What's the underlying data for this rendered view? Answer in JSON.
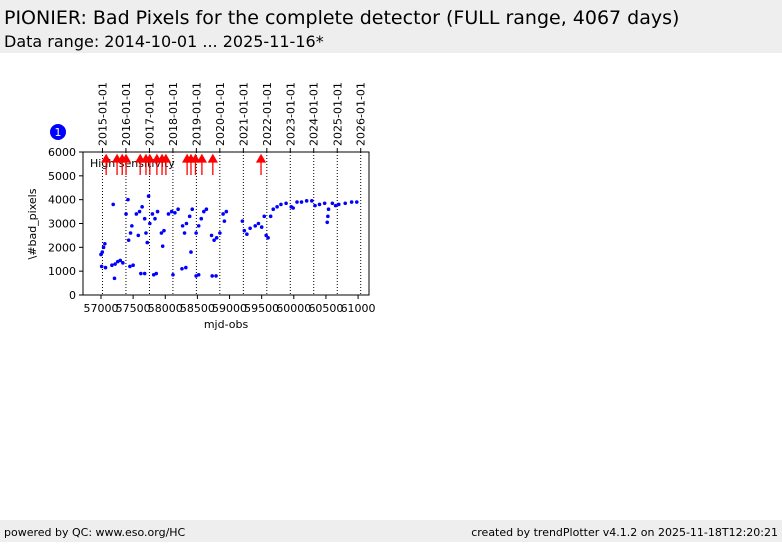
{
  "header": {
    "title": "PIONIER: Bad Pixels for the complete detector (FULL range, 4067 days)",
    "subtitle": "Data range: 2014-10-01 ... 2025-11-16*"
  },
  "badge": "1",
  "footer": {
    "left": "powered by QC: www.eso.org/HC",
    "right": "created by trendPlotter v4.1.2 on 2025-11-18T12:20:21"
  },
  "chart_data": {
    "type": "scatter",
    "annotation": "High sensitivity",
    "xlabel": "mjd-obs",
    "ylabel": "\\#bad_pixels",
    "color": "#0000ff",
    "arrow_color": "#ff0000",
    "xlim": [
      56720,
      61170
    ],
    "ylim": [
      0,
      6000
    ],
    "xticks": [
      57000,
      57500,
      58000,
      58500,
      59000,
      59500,
      60000,
      60500,
      61000
    ],
    "yticks": [
      0,
      1000,
      2000,
      3000,
      4000,
      5000,
      6000
    ],
    "x2ticks": [
      {
        "value": 57023,
        "label": "2015-01-01"
      },
      {
        "value": 57388,
        "label": "2016-01-01"
      },
      {
        "value": 57754,
        "label": "2017-01-01"
      },
      {
        "value": 58119,
        "label": "2018-01-01"
      },
      {
        "value": 58484,
        "label": "2019-01-01"
      },
      {
        "value": 58849,
        "label": "2020-01-01"
      },
      {
        "value": 59215,
        "label": "2021-01-01"
      },
      {
        "value": 59580,
        "label": "2022-01-01"
      },
      {
        "value": 59945,
        "label": "2023-01-01"
      },
      {
        "value": 60310,
        "label": "2024-01-01"
      },
      {
        "value": 60676,
        "label": "2025-01-01"
      },
      {
        "value": 61041,
        "label": "2026-01-01"
      }
    ],
    "arrows_x": [
      57080,
      57250,
      57330,
      57390,
      57610,
      57700,
      57760,
      57870,
      57950,
      58010,
      58340,
      58400,
      58470,
      58570,
      58740,
      59490
    ],
    "x": [
      57000,
      57020,
      57040,
      57060,
      57010,
      57070,
      57170,
      57220,
      57260,
      57300,
      57340,
      57210,
      57190,
      57390,
      57420,
      57430,
      57460,
      57480,
      57450,
      57500,
      57550,
      57600,
      57640,
      57680,
      57700,
      57720,
      57740,
      57760,
      57580,
      57620,
      57680,
      57800,
      57840,
      57880,
      57820,
      57860,
      57940,
      57980,
      57960,
      58050,
      58100,
      58150,
      58200,
      58120,
      58270,
      58300,
      58330,
      58260,
      58320,
      58380,
      58420,
      58400,
      58480,
      58520,
      58560,
      58600,
      58640,
      58480,
      58520,
      58720,
      58760,
      58800,
      58850,
      58730,
      58790,
      58900,
      58950,
      58920,
      59200,
      59230,
      59270,
      59320,
      59400,
      59450,
      59500,
      59540,
      59570,
      59600,
      59640,
      59680,
      59740,
      59800,
      59880,
      59960,
      59990,
      60050,
      60120,
      60200,
      60280,
      60330,
      60400,
      60480,
      60540,
      60530,
      60520,
      60600,
      60650,
      60700,
      60800,
      60900,
      60980
    ],
    "values": [
      1700,
      1800,
      2000,
      2150,
      1200,
      1150,
      1250,
      1300,
      1400,
      1450,
      1350,
      700,
      3800,
      3400,
      4000,
      2300,
      2600,
      2900,
      1200,
      1250,
      3400,
      3500,
      3700,
      3200,
      2600,
      2200,
      4150,
      3000,
      2500,
      900,
      900,
      3400,
      3200,
      3500,
      850,
      900,
      2600,
      2700,
      2050,
      3400,
      3500,
      3450,
      3600,
      850,
      2900,
      2600,
      3000,
      1100,
      1150,
      3300,
      3600,
      1800,
      2600,
      2900,
      3200,
      3500,
      3600,
      800,
      850,
      2500,
      2300,
      2400,
      2600,
      800,
      800,
      3400,
      3500,
      3100,
      3100,
      2700,
      2550,
      2800,
      2900,
      3000,
      2850,
      3300,
      2500,
      2400,
      3300,
      3600,
      3700,
      3800,
      3850,
      3700,
      3650,
      3900,
      3900,
      3950,
      3950,
      3750,
      3800,
      3850,
      3600,
      3300,
      3050,
      3850,
      3750,
      3800,
      3850,
      3900,
      3900
    ]
  }
}
